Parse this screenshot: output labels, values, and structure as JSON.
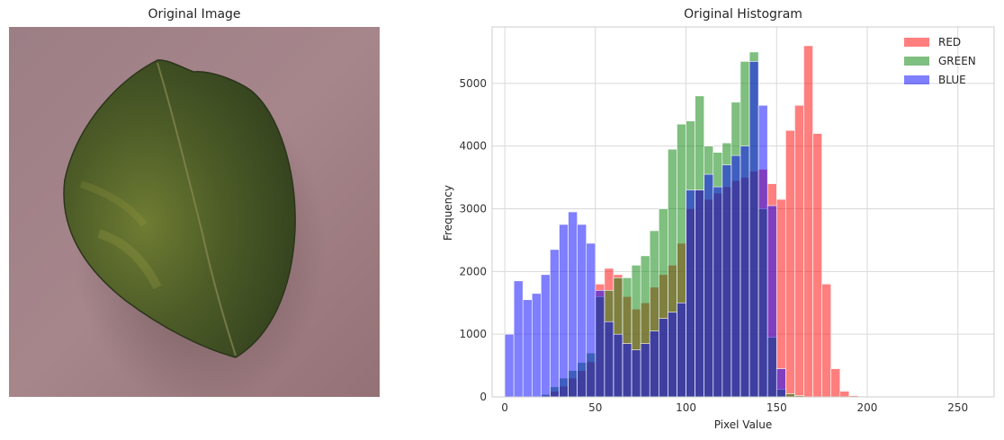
{
  "left_panel": {
    "title": "Original Image",
    "image_subject": "leaf-photo",
    "colors": {
      "background": "#a48389",
      "leaf_dark": "#3b4a22",
      "leaf_light": "#6a7a30"
    }
  },
  "chart_data": {
    "type": "histogram",
    "title": "Original Histogram",
    "xlabel": "Pixel Value",
    "ylabel": "Frequency",
    "xlim": [
      -7,
      270
    ],
    "ylim": [
      0,
      5900
    ],
    "xticks": [
      0,
      50,
      100,
      150,
      200,
      250
    ],
    "yticks": [
      0,
      1000,
      2000,
      3000,
      4000,
      5000
    ],
    "grid": true,
    "legend_position": "top-right",
    "bin_edges": [
      0,
      5,
      10,
      15,
      20,
      25,
      30,
      35,
      40,
      45,
      50,
      55,
      60,
      65,
      70,
      75,
      80,
      85,
      90,
      95,
      100,
      105,
      110,
      115,
      120,
      125,
      130,
      135,
      140,
      145,
      150,
      155,
      160,
      165,
      170,
      175,
      180,
      185,
      190,
      195,
      200,
      205,
      210,
      215,
      220,
      225,
      230,
      235,
      240,
      245,
      250,
      255
    ],
    "series": [
      {
        "name": "RED",
        "color": "#ff0000",
        "values": [
          0,
          0,
          0,
          0,
          20,
          90,
          170,
          300,
          420,
          560,
          1800,
          2050,
          1950,
          1600,
          1400,
          1500,
          1750,
          1950,
          2100,
          2450,
          3000,
          3300,
          3150,
          3250,
          3350,
          3450,
          3500,
          3600,
          3630,
          3400,
          3150,
          4250,
          4650,
          5600,
          4200,
          1800,
          450,
          90,
          20,
          0,
          0,
          0,
          0,
          0,
          0,
          0,
          0,
          0,
          0,
          0,
          0
        ]
      },
      {
        "name": "GREEN",
        "color": "#008000",
        "values": [
          0,
          0,
          0,
          0,
          40,
          160,
          300,
          420,
          550,
          700,
          1600,
          1700,
          1900,
          1900,
          2100,
          2250,
          2650,
          3000,
          3950,
          4350,
          4400,
          4800,
          4000,
          3900,
          4050,
          4700,
          5350,
          5500,
          3000,
          950,
          120,
          50,
          20,
          0,
          0,
          0,
          0,
          0,
          0,
          0,
          0,
          0,
          0,
          0,
          0,
          0,
          0,
          0,
          0,
          0,
          0
        ]
      },
      {
        "name": "BLUE",
        "color": "#0000ff",
        "values": [
          1000,
          1850,
          1550,
          1650,
          1950,
          2350,
          2750,
          2950,
          2750,
          2450,
          1700,
          1200,
          1000,
          850,
          750,
          850,
          1050,
          1250,
          1350,
          1500,
          3300,
          3300,
          3550,
          3350,
          3700,
          3850,
          4000,
          5350,
          4650,
          3050,
          450,
          0,
          0,
          0,
          0,
          0,
          0,
          0,
          0,
          0,
          0,
          0,
          0,
          0,
          0,
          0,
          0,
          0,
          0,
          0,
          0
        ]
      }
    ]
  }
}
